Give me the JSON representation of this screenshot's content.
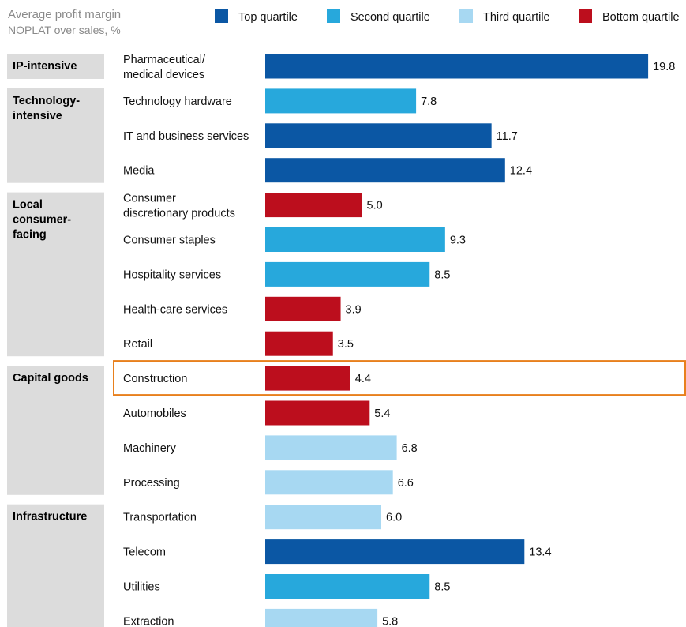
{
  "chart_data": {
    "type": "bar",
    "title": "Average profit margin",
    "subtitle": "NOPLAT over sales, %",
    "xlim": [
      0,
      20
    ],
    "grid": false,
    "legend_position": "top",
    "legend": [
      {
        "key": "top",
        "label": "Top quartile",
        "color": "#0b57a4"
      },
      {
        "key": "second",
        "label": "Second quartile",
        "color": "#27a8dc"
      },
      {
        "key": "third",
        "label": "Third quartile",
        "color": "#a7d8f2"
      },
      {
        "key": "bottom",
        "label": "Bottom quartile",
        "color": "#bc0e1d"
      }
    ],
    "groups": [
      {
        "label": [
          "IP-intensive"
        ],
        "items": [
          {
            "label": [
              "Pharmaceutical/",
              "medical devices"
            ],
            "value": 19.8,
            "quartile": "top"
          }
        ]
      },
      {
        "label": [
          "Technology-",
          "intensive"
        ],
        "items": [
          {
            "label": [
              "Technology hardware"
            ],
            "value": 7.8,
            "quartile": "second"
          },
          {
            "label": [
              "IT and business services"
            ],
            "value": 11.7,
            "quartile": "top"
          },
          {
            "label": [
              "Media"
            ],
            "value": 12.4,
            "quartile": "top"
          }
        ]
      },
      {
        "label": [
          "Local",
          "consumer-",
          "facing"
        ],
        "items": [
          {
            "label": [
              "Consumer",
              "discretionary products"
            ],
            "value": 5.0,
            "quartile": "bottom"
          },
          {
            "label": [
              "Consumer staples"
            ],
            "value": 9.3,
            "quartile": "second"
          },
          {
            "label": [
              "Hospitality services"
            ],
            "value": 8.5,
            "quartile": "second"
          },
          {
            "label": [
              "Health-care services"
            ],
            "value": 3.9,
            "quartile": "bottom"
          },
          {
            "label": [
              "Retail"
            ],
            "value": 3.5,
            "quartile": "bottom"
          }
        ]
      },
      {
        "label": [
          "Capital goods"
        ],
        "items": [
          {
            "label": [
              "Construction"
            ],
            "value": 4.4,
            "quartile": "bottom",
            "highlight": true
          },
          {
            "label": [
              "Automobiles"
            ],
            "value": 5.4,
            "quartile": "bottom"
          },
          {
            "label": [
              "Machinery"
            ],
            "value": 6.8,
            "quartile": "third"
          },
          {
            "label": [
              "Processing"
            ],
            "value": 6.6,
            "quartile": "third"
          }
        ]
      },
      {
        "label": [
          "Infrastructure"
        ],
        "items": [
          {
            "label": [
              "Transportation"
            ],
            "value": 6.0,
            "quartile": "third"
          },
          {
            "label": [
              "Telecom"
            ],
            "value": 13.4,
            "quartile": "top"
          },
          {
            "label": [
              "Utilities"
            ],
            "value": 8.5,
            "quartile": "second"
          },
          {
            "label": [
              "Extraction"
            ],
            "value": 5.8,
            "quartile": "third"
          }
        ]
      }
    ],
    "highlight_color": "#e8801d"
  }
}
